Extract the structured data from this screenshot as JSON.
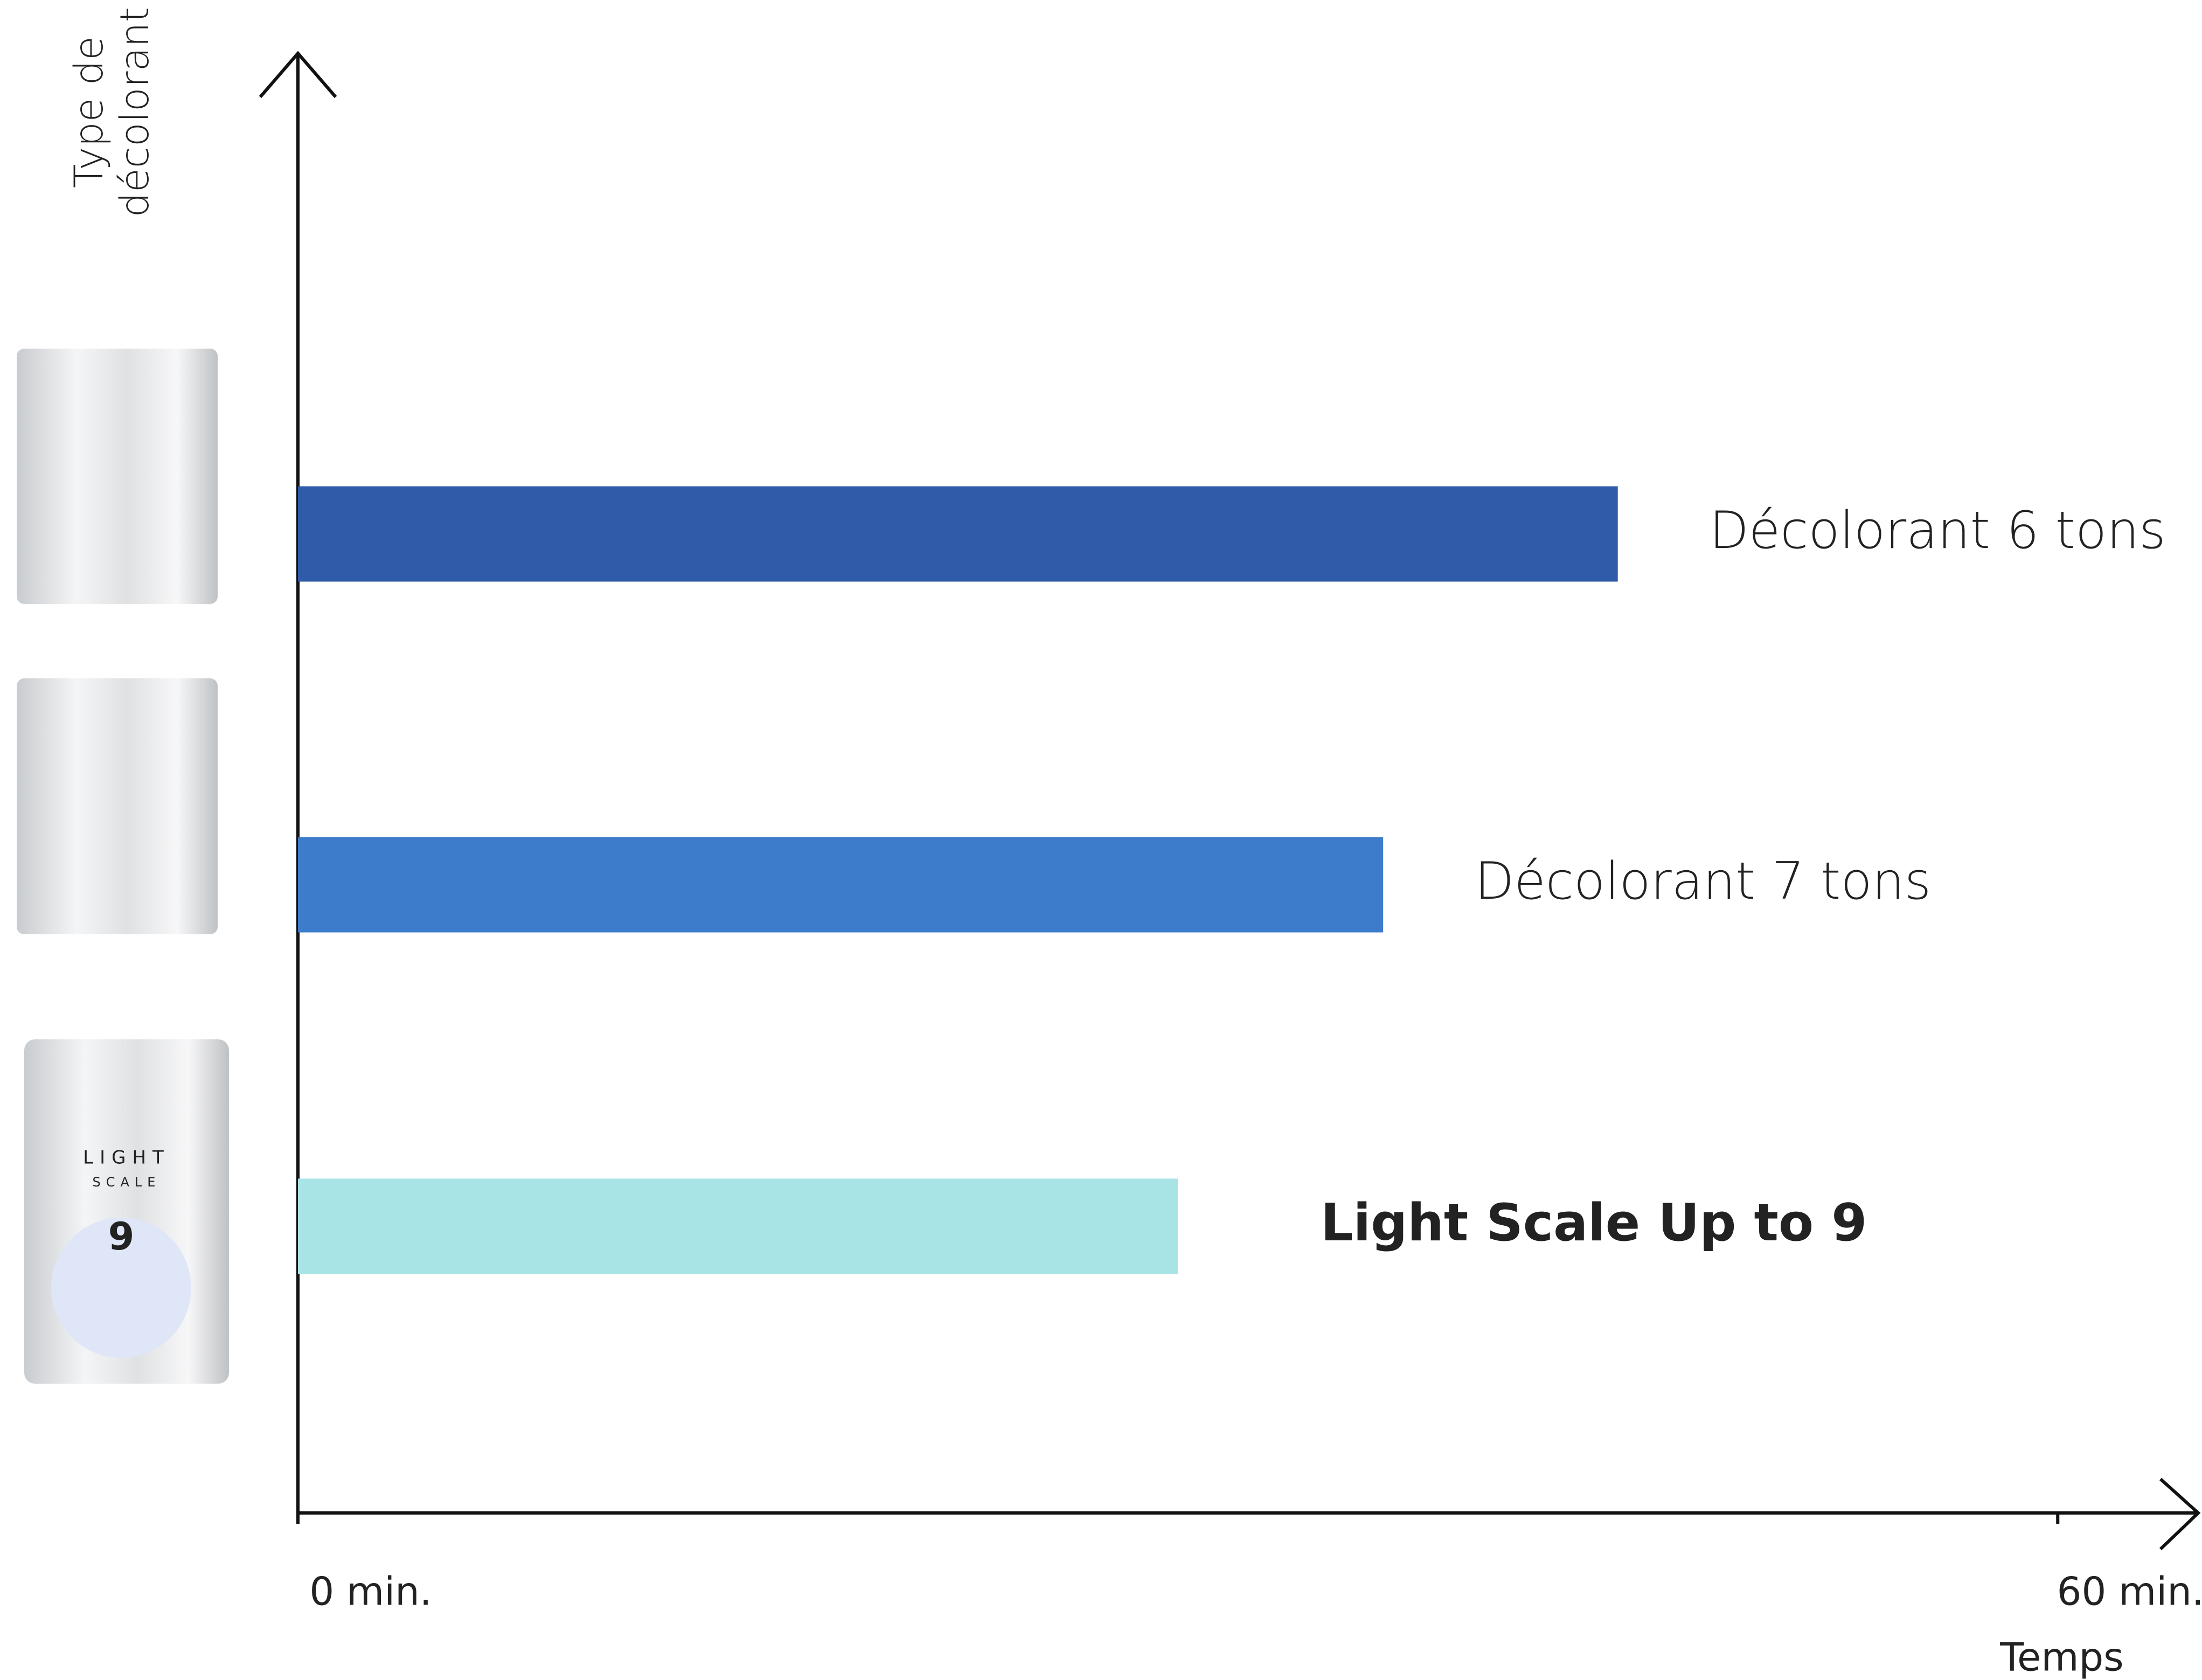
{
  "chart_data": {
    "type": "hbar",
    "ylabel": [
      "Type de",
      "décolorant"
    ],
    "xlabel": "Temps",
    "categories": [
      "Décolorant 6 tons",
      "Décolorant 7 tons",
      "Light Scale Up to 9"
    ],
    "values": [
      45,
      37,
      30
    ],
    "colors": [
      "#2f5ba8",
      "#3d7bcb",
      "#a8e4e6"
    ],
    "xlim": [
      0,
      64
    ],
    "xticks": [
      {
        "value": 0,
        "label": "0 min."
      },
      {
        "value": 60,
        "label": "60 min."
      }
    ],
    "product_text": [
      "LIGHT",
      "SCALE",
      "9"
    ]
  }
}
